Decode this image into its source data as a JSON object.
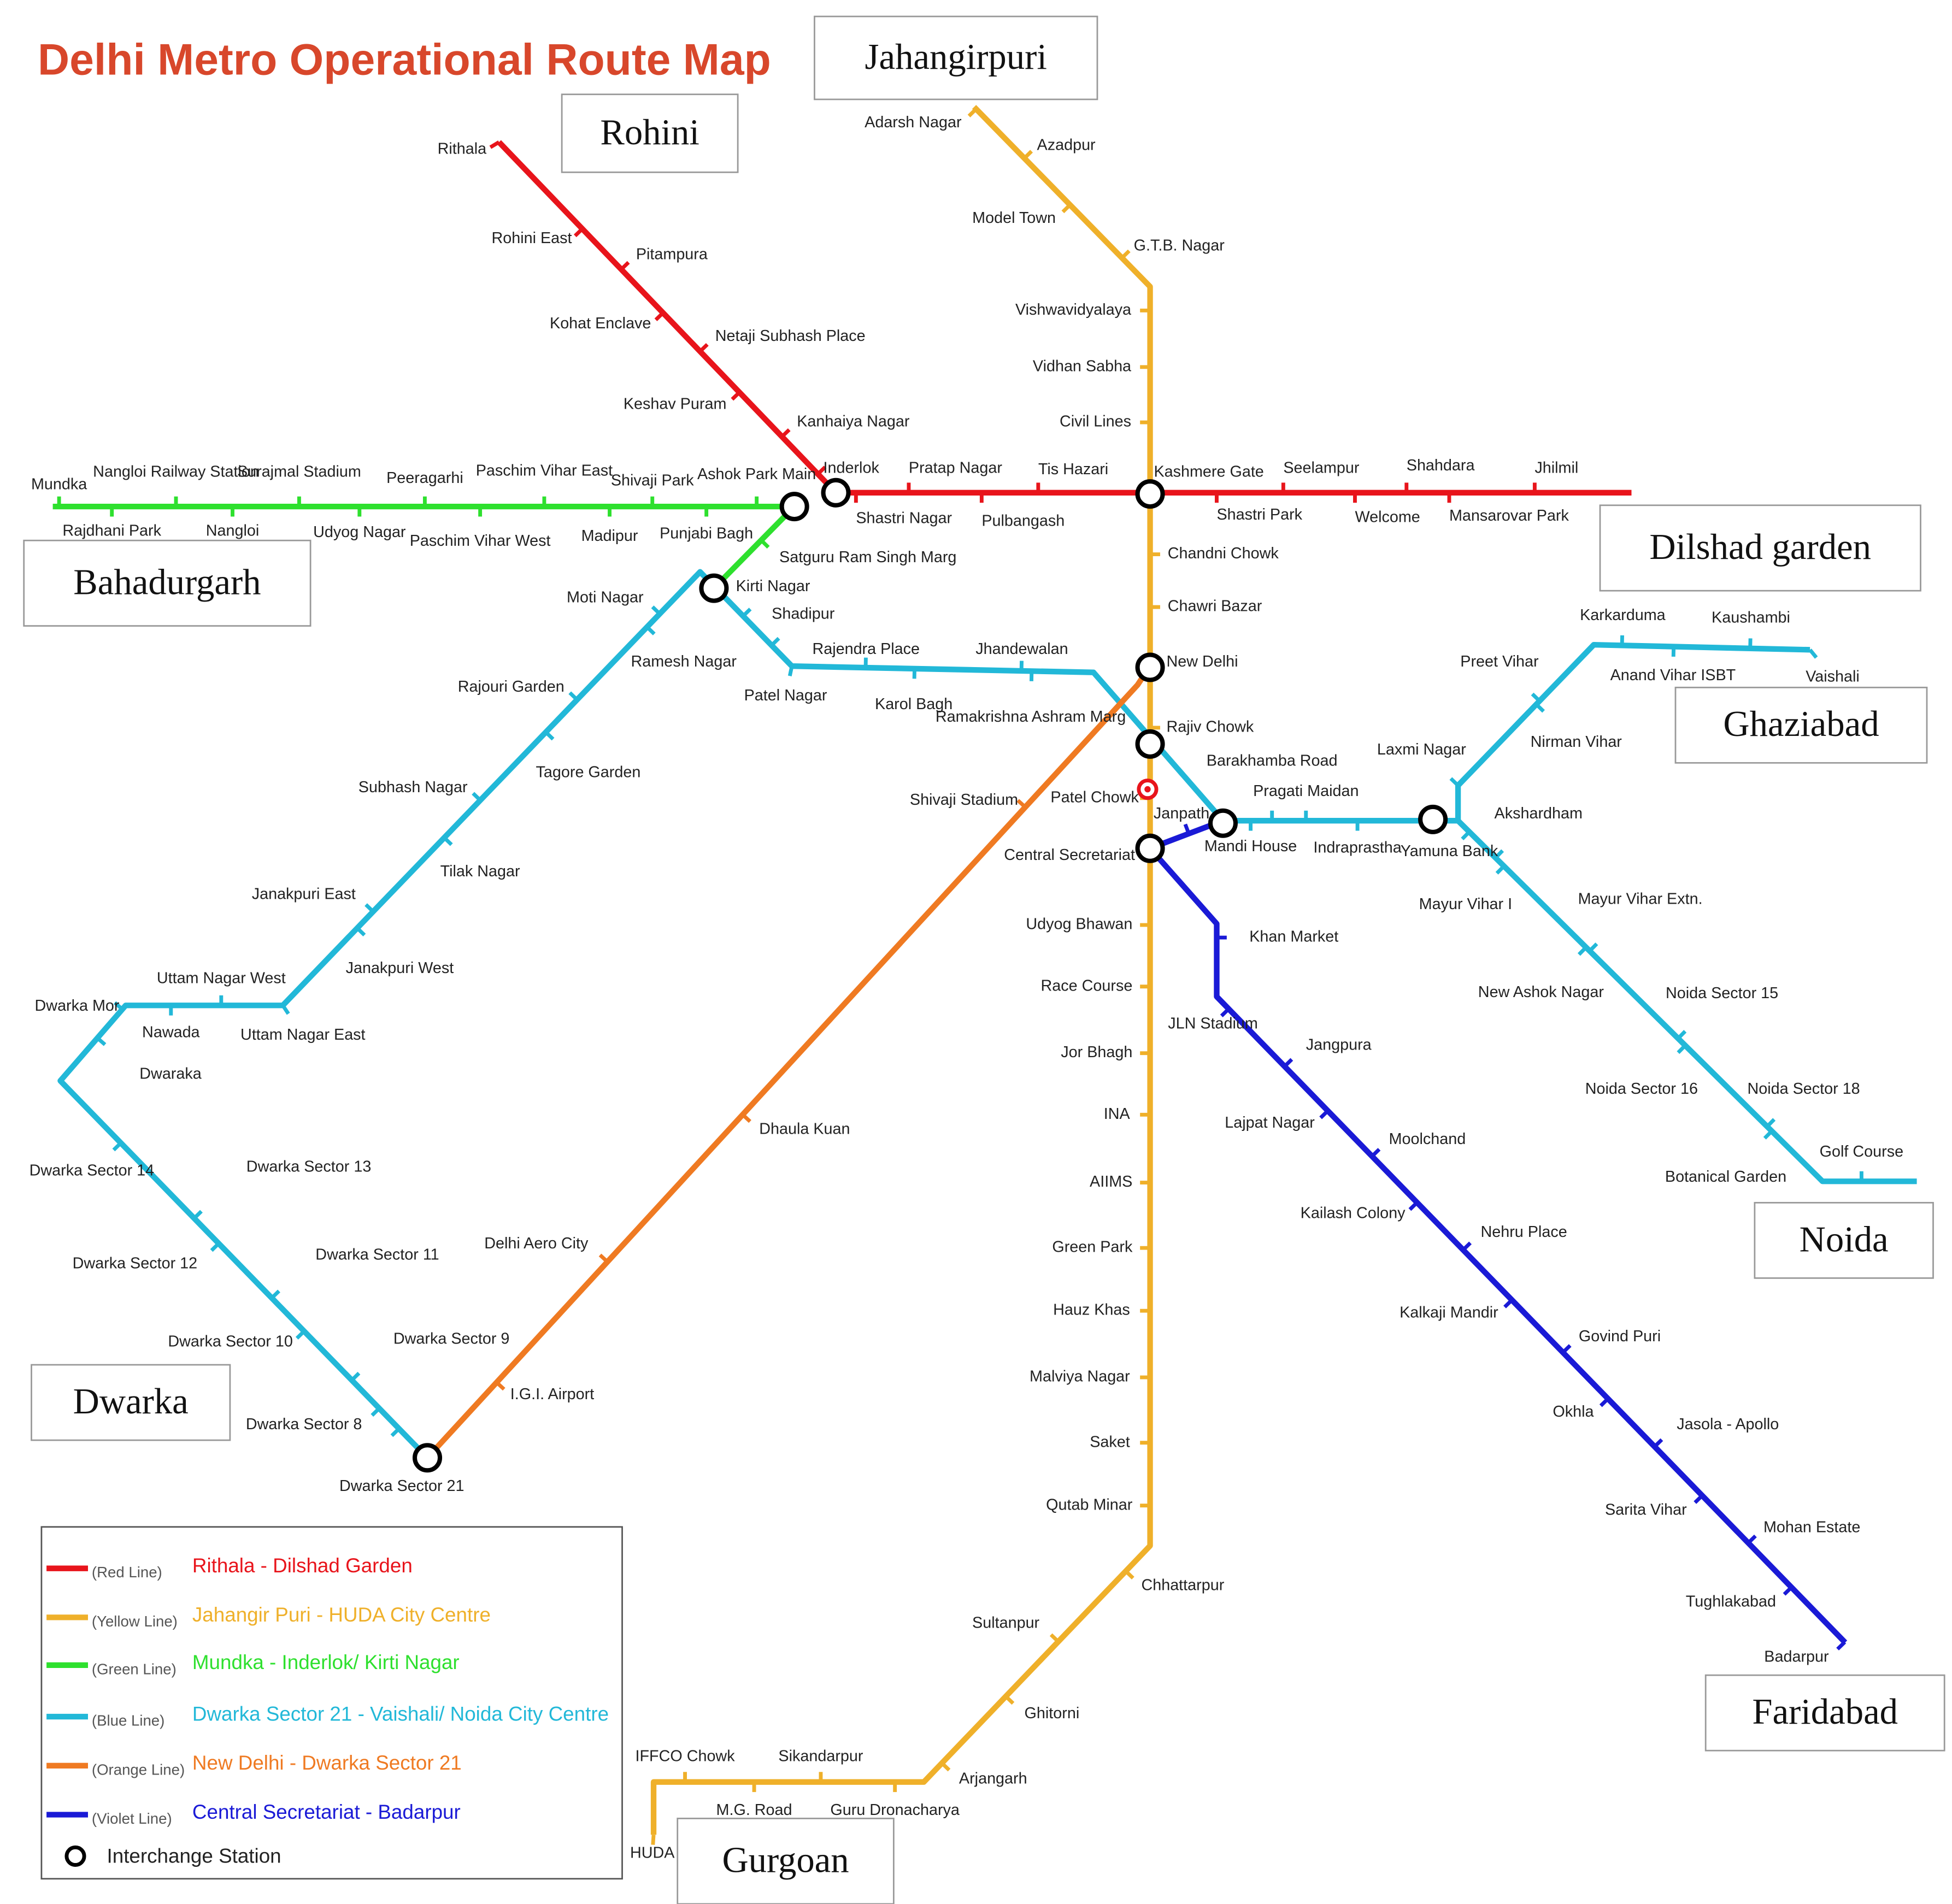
{
  "title": "Delhi Metro Operational Route Map",
  "regions": [
    "Rohini",
    "Jahangirpuri",
    "Dilshad garden",
    "Bahadurgarh",
    "Ghaziabad",
    "Noida",
    "Dwarka",
    "Faridabad",
    "Gurgoan"
  ],
  "lines": [
    {
      "name": "(Red Line)",
      "route": "Rithala - Dilshad Garden",
      "color": "#e8141b",
      "stations": [
        "Rithala",
        "Rohini East",
        "Pitampura",
        "Kohat Enclave",
        "Netaji Subhash Place",
        "Keshav Puram",
        "Kanhaiya Nagar",
        "Inderlok",
        "Shastri Nagar",
        "Pratap Nagar",
        "Pulbangash",
        "Tis Hazari",
        "Kashmere Gate",
        "Shastri Park",
        "Seelampur",
        "Welcome",
        "Shahdara",
        "Mansarovar Park",
        "Jhilmil"
      ]
    },
    {
      "name": "(Yellow Line)",
      "route": "Jahangir Puri - HUDA City Centre",
      "color": "#efb02a",
      "stations": [
        "Adarsh Nagar",
        "Azadpur",
        "Model Town",
        "G.T.B. Nagar",
        "Vishwavidyalaya",
        "Vidhan Sabha",
        "Civil Lines",
        "Chandni Chowk",
        "Chawri Bazar",
        "New Delhi",
        "Rajiv Chowk",
        "Patel Chowk",
        "Central Secretariat",
        "Udyog Bhawan",
        "Race Course",
        "Jor Bhagh",
        "INA",
        "AIIMS",
        "Green Park",
        "Hauz Khas",
        "Malviya Nagar",
        "Saket",
        "Qutab Minar",
        "Chhattarpur",
        "Sultanpur",
        "Ghitorni",
        "Arjangarh",
        "Guru Dronacharya",
        "Sikandarpur",
        "M.G. Road",
        "IFFCO Chowk",
        "HUDA"
      ]
    },
    {
      "name": "(Green Line)",
      "route": "Mundka - Inderlok/ Kirti Nagar",
      "color": "#2ee02e",
      "stations": [
        "Mundka",
        "Rajdhani Park",
        "Nangloi Railway Station",
        "Nangloi",
        "Surajmal Stadium",
        "Udyog Nagar",
        "Peeragarhi",
        "Paschim Vihar West",
        "Paschim Vihar East",
        "Madipur",
        "Shivaji Park",
        "Punjabi Bagh",
        "Ashok Park Main",
        "Satguru Ram Singh Marg"
      ]
    },
    {
      "name": "(Blue Line)",
      "route": "Dwarka Sector 21 - Vaishali/ Noida City Centre",
      "color": "#22b8d8",
      "stations": [
        "Dwarka Sector 21",
        "Dwarka Sector 8",
        "Dwarka Sector 9",
        "Dwarka Sector 10",
        "Dwarka Sector 11",
        "Dwarka Sector 12",
        "Dwarka Sector 13",
        "Dwarka Sector 14",
        "Dwaraka",
        "Dwarka Mor",
        "Nawada",
        "Uttam Nagar West",
        "Uttam Nagar East",
        "Janakpuri West",
        "Janakpuri East",
        "Tilak Nagar",
        "Subhash Nagar",
        "Tagore Garden",
        "Rajouri Garden",
        "Ramesh Nagar",
        "Moti Nagar",
        "Kirti Nagar",
        "Shadipur",
        "Patel Nagar",
        "Rajendra Place",
        "Karol Bagh",
        "Jhandewalan",
        "Ramakrishna Ashram Marg",
        "Barakhamba Road",
        "Mandi House",
        "Pragati Maidan",
        "Indraprastha",
        "Yamuna Bank",
        "Laxmi Nagar",
        "Nirman Vihar",
        "Preet Vihar",
        "Karkarduma",
        "Anand Vihar ISBT",
        "Kaushambi",
        "Vaishali",
        "Akshardham",
        "Mayur Vihar I",
        "Mayur Vihar Extn.",
        "New Ashok Nagar",
        "Noida Sector 15",
        "Noida Sector 16",
        "Noida Sector 18",
        "Botanical Garden",
        "Golf Course"
      ]
    },
    {
      "name": "(Orange Line)",
      "route": "New Delhi - Dwarka Sector 21",
      "color": "#ef7a22",
      "stations": [
        "Shivaji Stadium",
        "Dhaula Kuan",
        "Delhi Aero City",
        "I.G.I. Airport"
      ]
    },
    {
      "name": "(Violet Line)",
      "route": "Central Secretariat - Badarpur",
      "color": "#1a1ad6",
      "stations": [
        "Janpath",
        "Khan Market",
        "JLN Stadium",
        "Jangpura",
        "Lajpat Nagar",
        "Moolchand",
        "Kailash Colony",
        "Nehru Place",
        "Kalkaji Mandir",
        "Govind Puri",
        "Okhla",
        "Jasola - Apollo",
        "Sarita Vihar",
        "Mohan Estate",
        "Tughlakabad",
        "Badarpur"
      ]
    }
  ],
  "legend": {
    "interchange": "Interchange Station"
  }
}
